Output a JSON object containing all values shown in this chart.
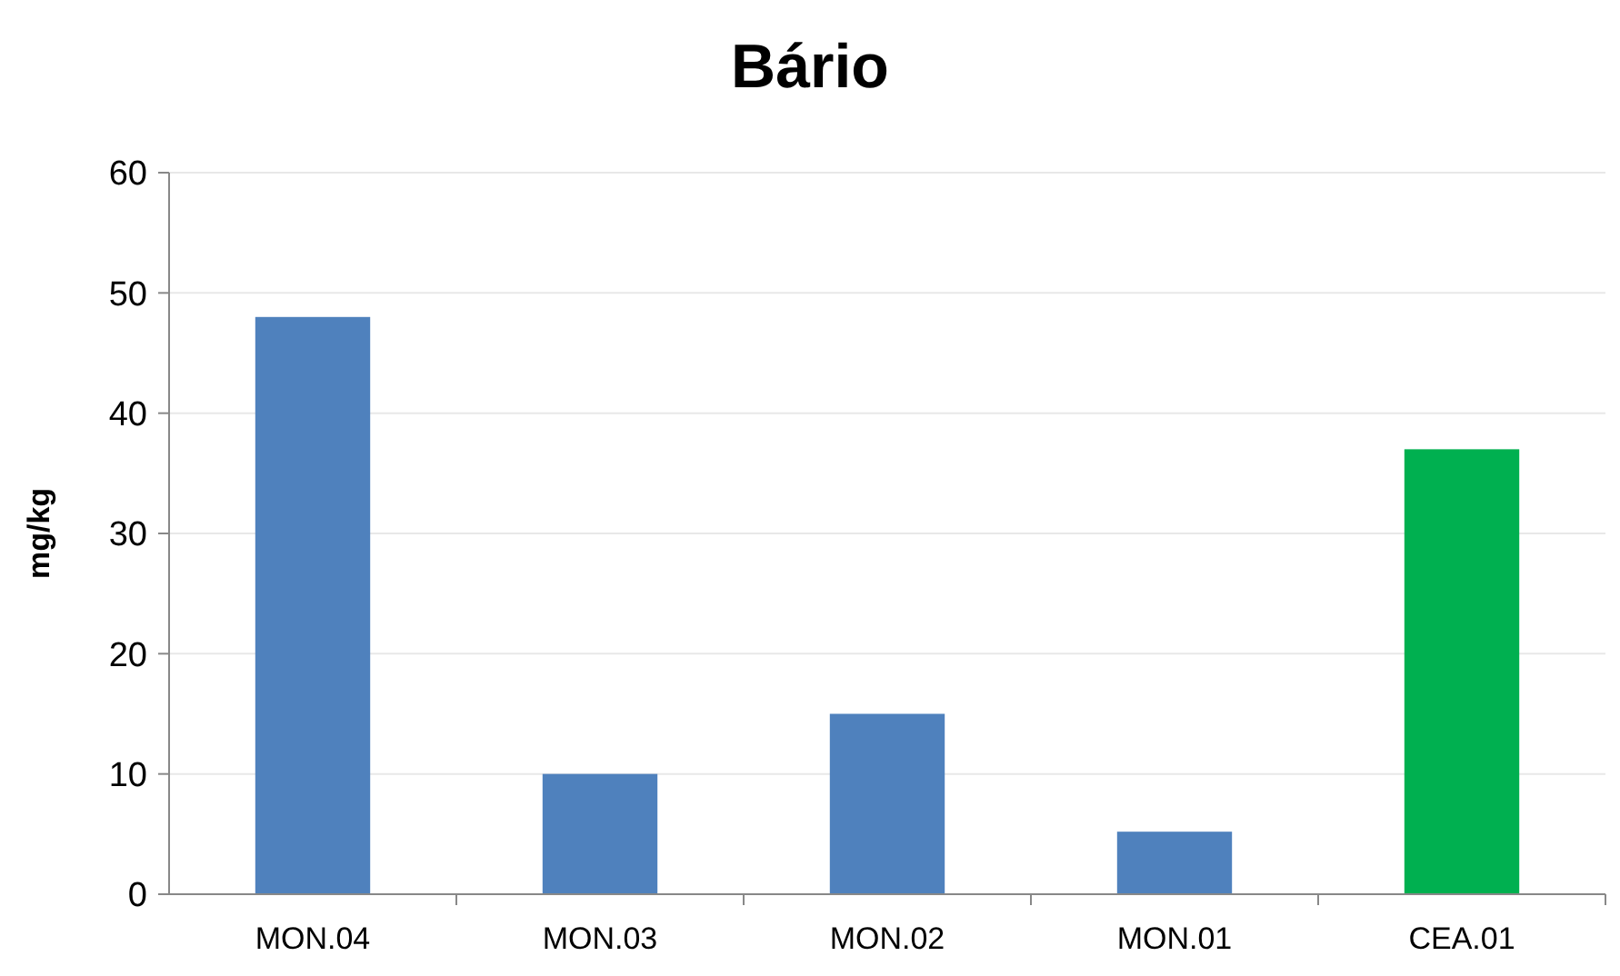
{
  "chart_data": {
    "type": "bar",
    "title": "Bário",
    "ylabel": "mg/kg",
    "categories": [
      "MON.04",
      "MON.03",
      "MON.02",
      "MON.01",
      "CEA.01"
    ],
    "values": [
      48,
      10,
      15,
      5.2,
      37
    ],
    "colors": [
      "#4f81bd",
      "#4f81bd",
      "#4f81bd",
      "#4f81bd",
      "#00b050"
    ],
    "ylim": [
      0,
      60
    ],
    "yticks": [
      0,
      10,
      20,
      30,
      40,
      50,
      60
    ],
    "grid": "y"
  }
}
